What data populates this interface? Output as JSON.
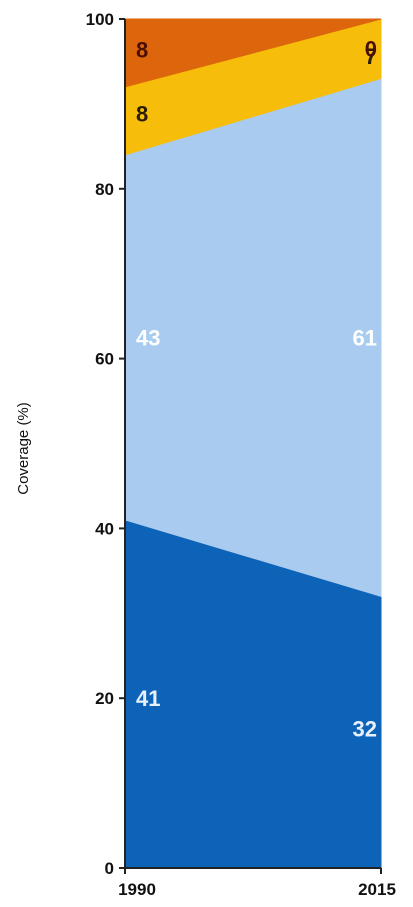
{
  "chart_data": {
    "type": "area",
    "stacked": true,
    "x": [
      "1990",
      "2015"
    ],
    "ylabel": "Coverage (%)",
    "ylim": [
      0,
      100
    ],
    "yticks": [
      "0",
      "20",
      "40",
      "60",
      "80",
      "100"
    ],
    "grid": false,
    "legend": "none",
    "series": [
      {
        "values": [
          41,
          32
        ],
        "labels": [
          "41",
          "32"
        ],
        "color": "#0d63b8",
        "label_color": "#e8f0fb"
      },
      {
        "values": [
          43,
          61
        ],
        "labels": [
          "43",
          "61"
        ],
        "color": "#a9cbef",
        "label_color": "#ffffff"
      },
      {
        "values": [
          8,
          7
        ],
        "labels": [
          "8",
          "7"
        ],
        "color": "#f6bd0b",
        "label_color": "#2b1c00"
      },
      {
        "values": [
          8,
          0
        ],
        "labels": [
          "8",
          "0"
        ],
        "color": "#dd660c",
        "label_color": "#4a0f04"
      }
    ]
  }
}
